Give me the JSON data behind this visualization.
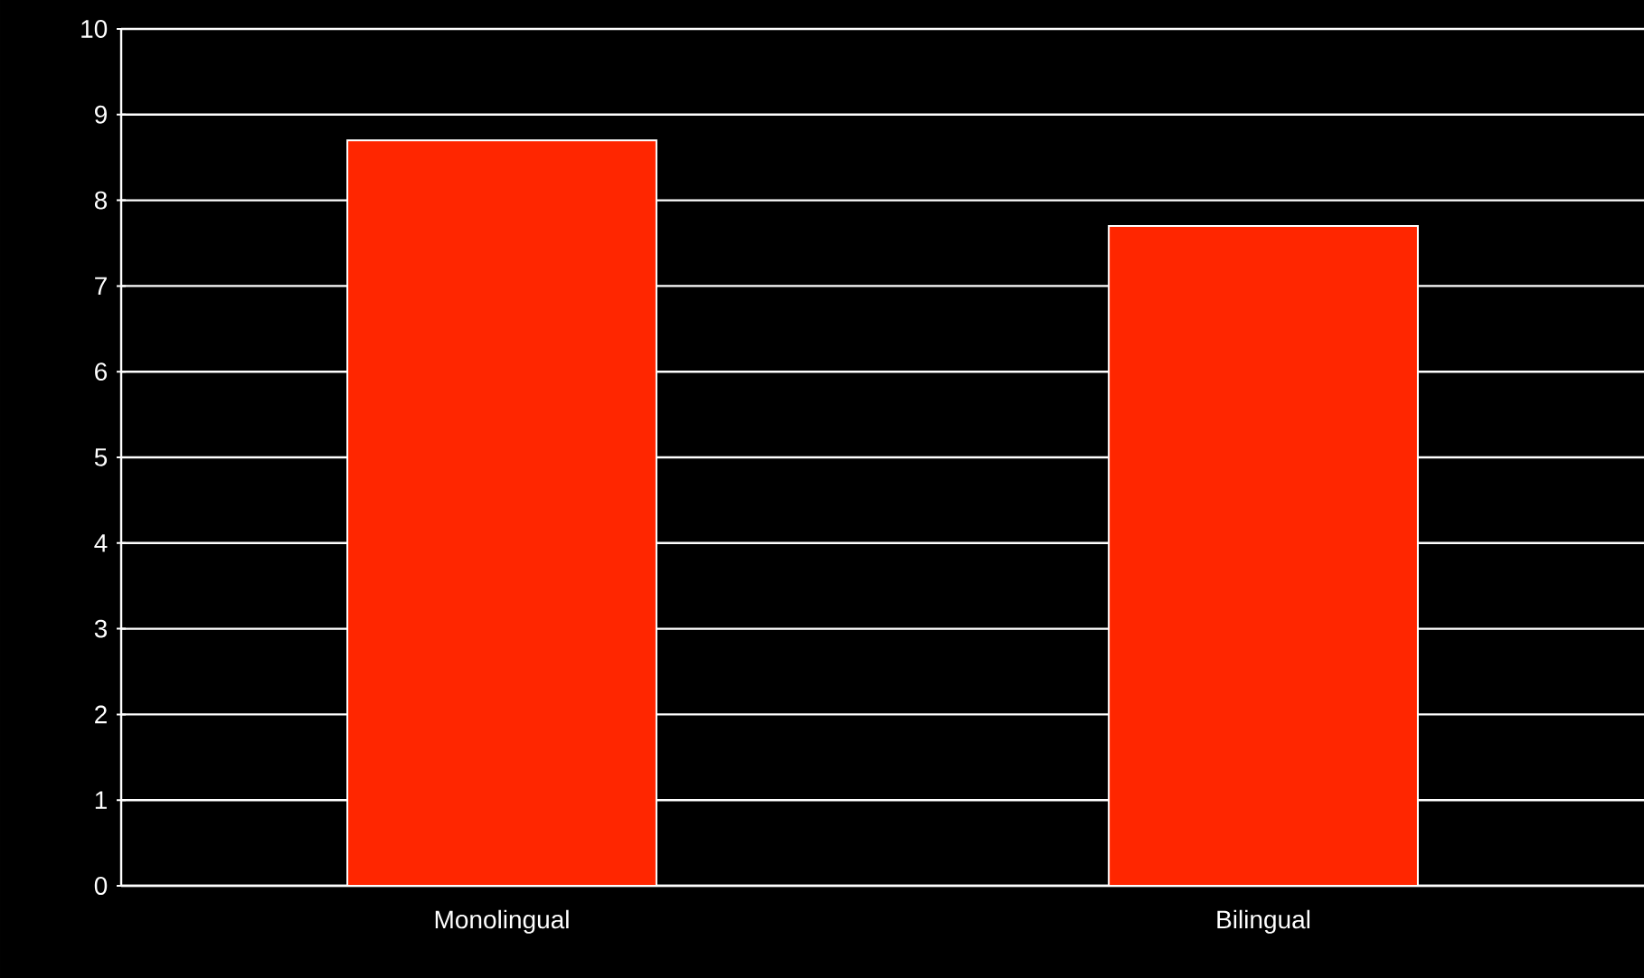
{
  "chart_data": {
    "type": "bar",
    "categories": [
      "Monolingual",
      "Bilingual"
    ],
    "values": [
      8.7,
      7.7
    ],
    "color": "#ff2600",
    "ylim": [
      0,
      10
    ],
    "yticks": [
      0,
      1,
      2,
      3,
      4,
      5,
      6,
      7,
      8,
      9,
      10
    ],
    "grid": "y"
  }
}
